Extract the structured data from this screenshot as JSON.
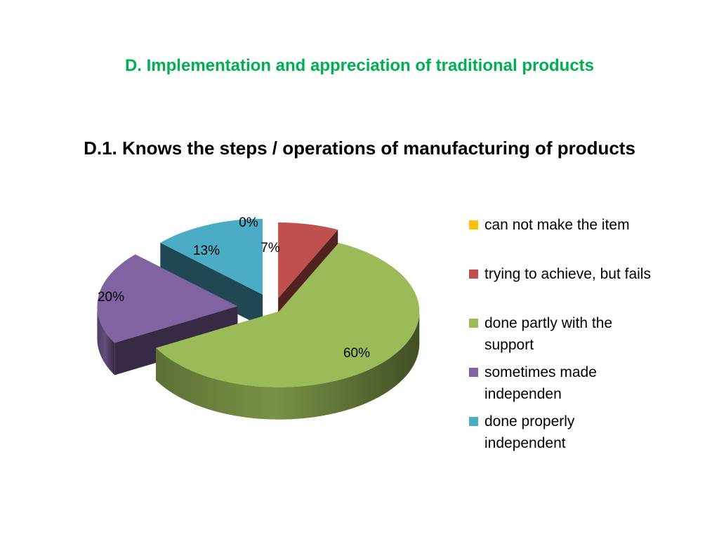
{
  "slide": {
    "title": "D. Implementation and appreciation of traditional products"
  },
  "chart_data": {
    "type": "pie",
    "title": "D.1. Knows the steps / operations of manufacturing of products",
    "legend_position": "right",
    "three_d": true,
    "exploded": true,
    "slices": [
      {
        "name": "can not make the item",
        "value": 0,
        "label": "0%",
        "color": "#ffc000"
      },
      {
        "name": "trying to achieve, but fails",
        "value": 7,
        "label": "7%",
        "color": "#c0504d"
      },
      {
        "name": "done partly with the support",
        "value": 60,
        "label": "60%",
        "color": "#9bbb59"
      },
      {
        "name": "sometimes made independen",
        "value": 20,
        "label": "20%",
        "color": "#8064a2"
      },
      {
        "name": "done properly independent",
        "value": 13,
        "label": "13%",
        "color": "#4bacc6"
      }
    ]
  }
}
